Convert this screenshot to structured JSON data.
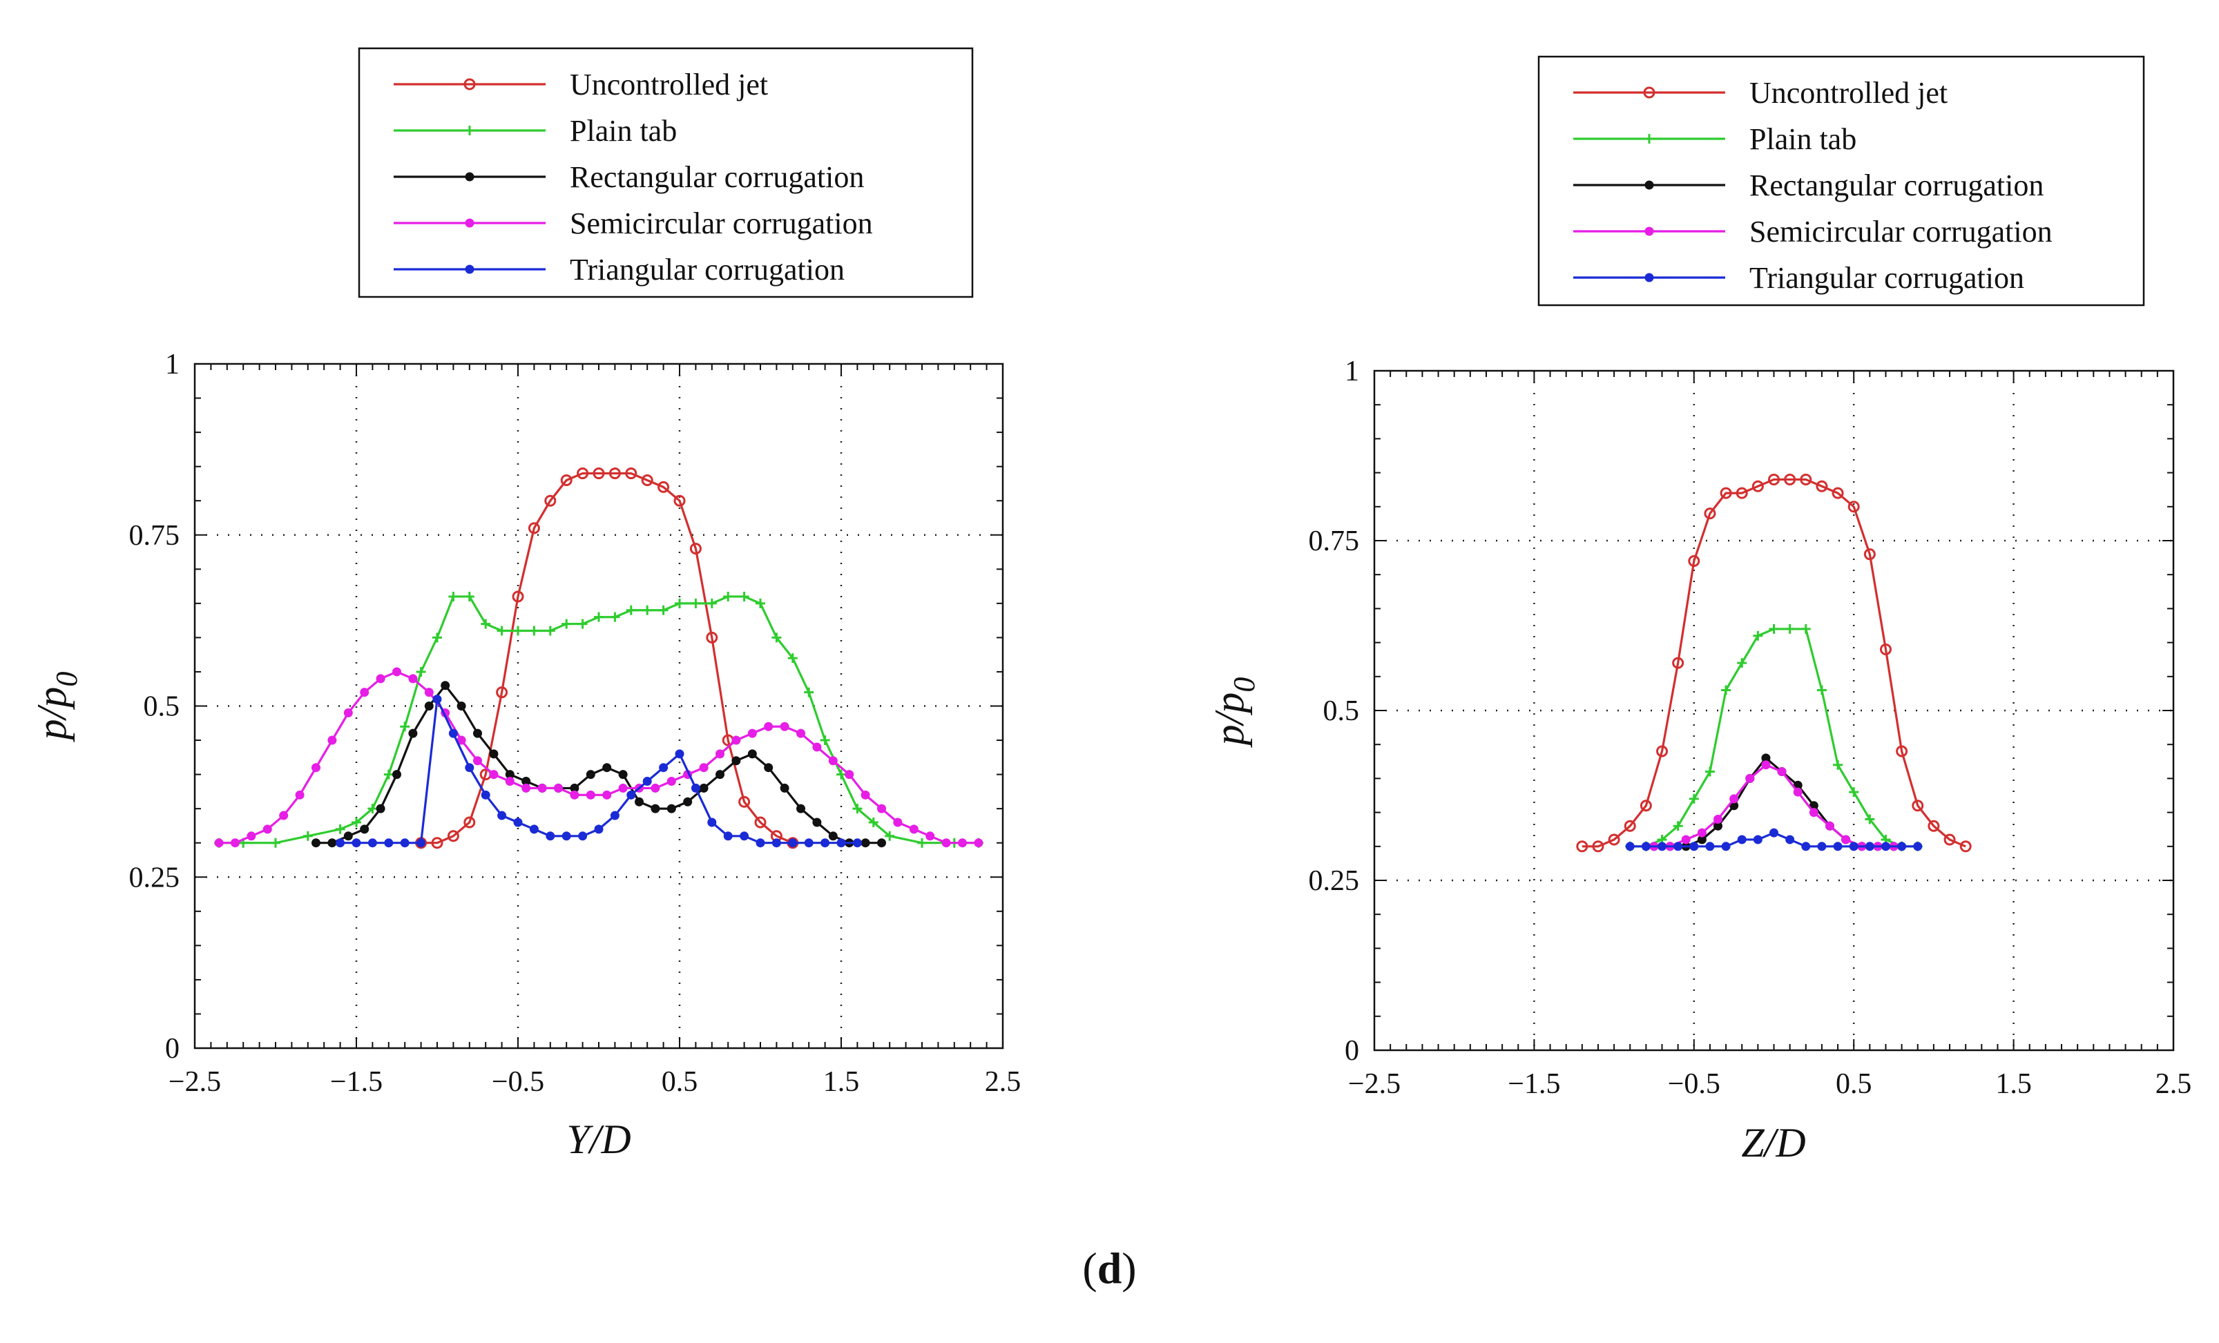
{
  "caption": {
    "open": "(",
    "letter": "d",
    "close": ")"
  },
  "legend_entries": [
    {
      "label": "Uncontrolled jet",
      "color": "#d32f2f",
      "marker": "circle"
    },
    {
      "label": "Plain tab",
      "color": "#2ecc2e",
      "marker": "plus"
    },
    {
      "label": "Rectangular corrugation",
      "color": "#111111",
      "marker": "dot"
    },
    {
      "label": "Semicircular corrugation",
      "color": "#e61ee6",
      "marker": "dot"
    },
    {
      "label": "Triangular corrugation",
      "color": "#1a2bd6",
      "marker": "dot"
    }
  ],
  "chart_data": [
    {
      "type": "line",
      "xlabel": "Y/D",
      "ylabel_main": "p/p",
      "ylabel_sub": "0",
      "xlim": [
        -2.5,
        2.5
      ],
      "ylim": [
        0,
        1
      ],
      "xticks": [
        -2.5,
        -1.5,
        -0.5,
        0.5,
        1.5,
        2.5
      ],
      "xtick_labels": [
        "−2.5",
        "−1.5",
        "−0.5",
        "0.5",
        "1.5",
        "2.5"
      ],
      "yticks": [
        0,
        0.25,
        0.5,
        0.75,
        1
      ],
      "ytick_labels": [
        "0",
        "0.25",
        "0.5",
        "0.75",
        "1"
      ],
      "grid": "dotted",
      "legend_position": "top",
      "series": [
        {
          "name": "Uncontrolled jet",
          "x": [
            -1.1,
            -1.0,
            -0.9,
            -0.8,
            -0.7,
            -0.6,
            -0.5,
            -0.4,
            -0.3,
            -0.2,
            -0.1,
            0.0,
            0.1,
            0.2,
            0.3,
            0.4,
            0.5,
            0.6,
            0.7,
            0.8,
            0.9,
            1.0,
            1.1,
            1.2
          ],
          "y": [
            0.3,
            0.3,
            0.31,
            0.33,
            0.4,
            0.52,
            0.66,
            0.76,
            0.8,
            0.83,
            0.84,
            0.84,
            0.84,
            0.84,
            0.83,
            0.82,
            0.8,
            0.73,
            0.6,
            0.45,
            0.36,
            0.33,
            0.31,
            0.3
          ]
        },
        {
          "name": "Plain tab",
          "x": [
            -2.35,
            -2.2,
            -2.0,
            -1.8,
            -1.6,
            -1.5,
            -1.4,
            -1.3,
            -1.2,
            -1.1,
            -1.0,
            -0.9,
            -0.8,
            -0.7,
            -0.6,
            -0.5,
            -0.4,
            -0.3,
            -0.2,
            -0.1,
            0.0,
            0.1,
            0.2,
            0.3,
            0.4,
            0.5,
            0.6,
            0.7,
            0.8,
            0.9,
            1.0,
            1.1,
            1.2,
            1.3,
            1.4,
            1.5,
            1.6,
            1.7,
            1.8,
            2.0,
            2.2,
            2.35
          ],
          "y": [
            0.3,
            0.3,
            0.3,
            0.31,
            0.32,
            0.33,
            0.35,
            0.4,
            0.47,
            0.55,
            0.6,
            0.66,
            0.66,
            0.62,
            0.61,
            0.61,
            0.61,
            0.61,
            0.62,
            0.62,
            0.63,
            0.63,
            0.64,
            0.64,
            0.64,
            0.65,
            0.65,
            0.65,
            0.66,
            0.66,
            0.65,
            0.6,
            0.57,
            0.52,
            0.45,
            0.4,
            0.35,
            0.33,
            0.31,
            0.3,
            0.3,
            0.3
          ]
        },
        {
          "name": "Rectangular corrugation",
          "x": [
            -1.75,
            -1.65,
            -1.55,
            -1.45,
            -1.35,
            -1.25,
            -1.15,
            -1.05,
            -0.95,
            -0.85,
            -0.75,
            -0.65,
            -0.55,
            -0.45,
            -0.35,
            -0.25,
            -0.15,
            -0.05,
            0.05,
            0.15,
            0.25,
            0.35,
            0.45,
            0.55,
            0.65,
            0.75,
            0.85,
            0.95,
            1.05,
            1.15,
            1.25,
            1.35,
            1.45,
            1.55,
            1.65,
            1.75
          ],
          "y": [
            0.3,
            0.3,
            0.31,
            0.32,
            0.35,
            0.4,
            0.46,
            0.5,
            0.53,
            0.5,
            0.46,
            0.43,
            0.4,
            0.39,
            0.38,
            0.38,
            0.38,
            0.4,
            0.41,
            0.4,
            0.36,
            0.35,
            0.35,
            0.36,
            0.38,
            0.4,
            0.42,
            0.43,
            0.41,
            0.38,
            0.35,
            0.33,
            0.31,
            0.3,
            0.3,
            0.3
          ]
        },
        {
          "name": "Semicircular corrugation",
          "x": [
            -2.35,
            -2.25,
            -2.15,
            -2.05,
            -1.95,
            -1.85,
            -1.75,
            -1.65,
            -1.55,
            -1.45,
            -1.35,
            -1.25,
            -1.15,
            -1.05,
            -0.95,
            -0.85,
            -0.75,
            -0.65,
            -0.55,
            -0.45,
            -0.35,
            -0.25,
            -0.15,
            -0.05,
            0.05,
            0.15,
            0.25,
            0.35,
            0.45,
            0.55,
            0.65,
            0.75,
            0.85,
            0.95,
            1.05,
            1.15,
            1.25,
            1.35,
            1.45,
            1.55,
            1.65,
            1.75,
            1.85,
            1.95,
            2.05,
            2.15,
            2.25,
            2.35
          ],
          "y": [
            0.3,
            0.3,
            0.31,
            0.32,
            0.34,
            0.37,
            0.41,
            0.45,
            0.49,
            0.52,
            0.54,
            0.55,
            0.54,
            0.52,
            0.49,
            0.45,
            0.42,
            0.4,
            0.39,
            0.38,
            0.38,
            0.38,
            0.37,
            0.37,
            0.37,
            0.38,
            0.38,
            0.38,
            0.39,
            0.4,
            0.41,
            0.43,
            0.45,
            0.46,
            0.47,
            0.47,
            0.46,
            0.44,
            0.42,
            0.4,
            0.37,
            0.35,
            0.33,
            0.32,
            0.31,
            0.3,
            0.3,
            0.3
          ]
        },
        {
          "name": "Triangular corrugation",
          "x": [
            -1.6,
            -1.5,
            -1.4,
            -1.3,
            -1.2,
            -1.1,
            -1.0,
            -0.9,
            -0.8,
            -0.7,
            -0.6,
            -0.5,
            -0.4,
            -0.3,
            -0.2,
            -0.1,
            0.0,
            0.1,
            0.2,
            0.3,
            0.4,
            0.5,
            0.6,
            0.7,
            0.8,
            0.9,
            1.0,
            1.1,
            1.2,
            1.3,
            1.4,
            1.5,
            1.6
          ],
          "y": [
            0.3,
            0.3,
            0.3,
            0.3,
            0.3,
            0.3,
            0.51,
            0.46,
            0.41,
            0.37,
            0.34,
            0.33,
            0.32,
            0.31,
            0.31,
            0.31,
            0.32,
            0.34,
            0.37,
            0.39,
            0.41,
            0.43,
            0.38,
            0.33,
            0.31,
            0.31,
            0.3,
            0.3,
            0.3,
            0.3,
            0.3,
            0.3,
            0.3
          ]
        }
      ]
    },
    {
      "type": "line",
      "xlabel": "Z/D",
      "ylabel_main": "p/p",
      "ylabel_sub": "0",
      "xlim": [
        -2.5,
        2.5
      ],
      "ylim": [
        0,
        1
      ],
      "xticks": [
        -2.5,
        -1.5,
        -0.5,
        0.5,
        1.5,
        2.5
      ],
      "xtick_labels": [
        "−2.5",
        "−1.5",
        "−0.5",
        "0.5",
        "1.5",
        "2.5"
      ],
      "yticks": [
        0,
        0.25,
        0.5,
        0.75,
        1
      ],
      "ytick_labels": [
        "0",
        "0.25",
        "0.5",
        "0.75",
        "1"
      ],
      "grid": "dotted",
      "legend_position": "top",
      "series": [
        {
          "name": "Uncontrolled jet",
          "x": [
            -1.2,
            -1.1,
            -1.0,
            -0.9,
            -0.8,
            -0.7,
            -0.6,
            -0.5,
            -0.4,
            -0.3,
            -0.2,
            -0.1,
            0.0,
            0.1,
            0.2,
            0.3,
            0.4,
            0.5,
            0.6,
            0.7,
            0.8,
            0.9,
            1.0,
            1.1,
            1.2
          ],
          "y": [
            0.3,
            0.3,
            0.31,
            0.33,
            0.36,
            0.44,
            0.57,
            0.72,
            0.79,
            0.82,
            0.82,
            0.83,
            0.84,
            0.84,
            0.84,
            0.83,
            0.82,
            0.8,
            0.73,
            0.59,
            0.44,
            0.36,
            0.33,
            0.31,
            0.3
          ]
        },
        {
          "name": "Plain tab",
          "x": [
            -0.9,
            -0.8,
            -0.7,
            -0.6,
            -0.5,
            -0.4,
            -0.3,
            -0.2,
            -0.1,
            0.0,
            0.1,
            0.2,
            0.3,
            0.4,
            0.5,
            0.6,
            0.7,
            0.8,
            0.9
          ],
          "y": [
            0.3,
            0.3,
            0.31,
            0.33,
            0.37,
            0.41,
            0.53,
            0.57,
            0.61,
            0.62,
            0.62,
            0.62,
            0.53,
            0.42,
            0.38,
            0.34,
            0.31,
            0.3,
            0.3
          ]
        },
        {
          "name": "Rectangular corrugation",
          "x": [
            -0.75,
            -0.65,
            -0.55,
            -0.45,
            -0.35,
            -0.25,
            -0.15,
            -0.05,
            0.05,
            0.15,
            0.25,
            0.35,
            0.45,
            0.55,
            0.65,
            0.75
          ],
          "y": [
            0.3,
            0.3,
            0.3,
            0.31,
            0.33,
            0.36,
            0.4,
            0.43,
            0.41,
            0.39,
            0.36,
            0.33,
            0.31,
            0.3,
            0.3,
            0.3
          ]
        },
        {
          "name": "Semicircular corrugation",
          "x": [
            -0.75,
            -0.65,
            -0.55,
            -0.45,
            -0.35,
            -0.25,
            -0.15,
            -0.05,
            0.05,
            0.15,
            0.25,
            0.35,
            0.45,
            0.55,
            0.65,
            0.75
          ],
          "y": [
            0.3,
            0.3,
            0.31,
            0.32,
            0.34,
            0.37,
            0.4,
            0.42,
            0.41,
            0.38,
            0.35,
            0.33,
            0.31,
            0.3,
            0.3,
            0.3
          ]
        },
        {
          "name": "Triangular corrugation",
          "x": [
            -0.9,
            -0.8,
            -0.7,
            -0.6,
            -0.5,
            -0.4,
            -0.3,
            -0.2,
            -0.1,
            0.0,
            0.1,
            0.2,
            0.3,
            0.4,
            0.5,
            0.6,
            0.7,
            0.8,
            0.9
          ],
          "y": [
            0.3,
            0.3,
            0.3,
            0.3,
            0.3,
            0.3,
            0.3,
            0.31,
            0.31,
            0.32,
            0.31,
            0.3,
            0.3,
            0.3,
            0.3,
            0.3,
            0.3,
            0.3,
            0.3
          ]
        }
      ]
    }
  ]
}
